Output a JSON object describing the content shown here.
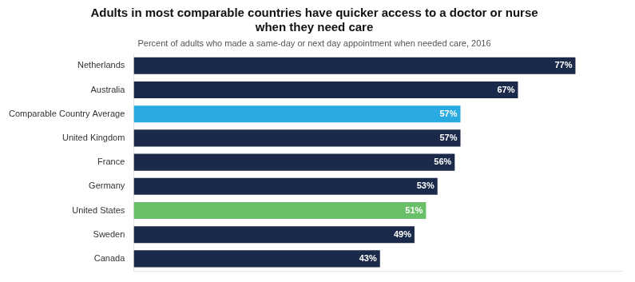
{
  "chart_data": {
    "type": "bar",
    "orientation": "horizontal",
    "title": "Adults in most comparable countries have quicker access to a doctor or nurse\nwhen they need care",
    "subtitle": "Percent of adults who made a same-day or next day appointment when needed care, 2016",
    "categories": [
      "Netherlands",
      "Australia",
      "Comparable Country Average",
      "United Kingdom",
      "France",
      "Germany",
      "United States",
      "Sweden",
      "Canada"
    ],
    "values": [
      77,
      67,
      57,
      57,
      56,
      53,
      51,
      49,
      43
    ],
    "value_labels": [
      "77%",
      "67%",
      "57%",
      "57%",
      "56%",
      "53%",
      "51%",
      "49%",
      "43%"
    ],
    "colors": [
      "#1b2a4a",
      "#1b2a4a",
      "#29abe2",
      "#1b2a4a",
      "#1b2a4a",
      "#1b2a4a",
      "#6abf69",
      "#1b2a4a",
      "#1b2a4a"
    ],
    "xlim": [
      0,
      85
    ],
    "data_labels": true,
    "grid": false,
    "tick_labels": "y"
  }
}
